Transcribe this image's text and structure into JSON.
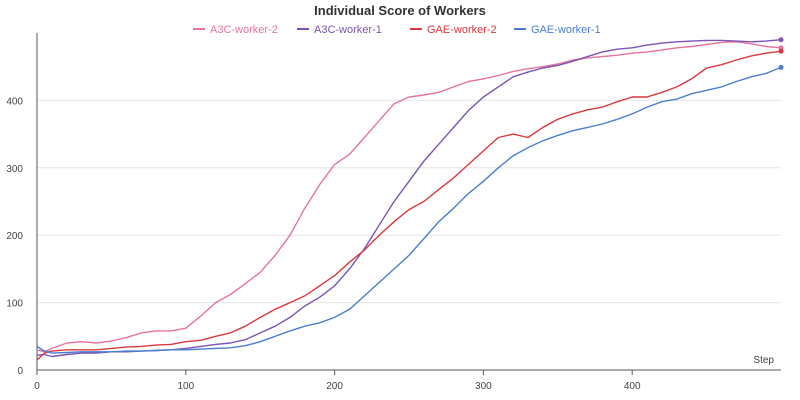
{
  "chart_data": {
    "type": "line",
    "title": "Individual Score of Workers",
    "xlabel": "Step",
    "ylabel": "",
    "xlim": [
      0,
      500
    ],
    "ylim": [
      0,
      500
    ],
    "x_ticks": [
      0,
      100,
      200,
      300,
      400
    ],
    "y_ticks": [
      0,
      100,
      200,
      300,
      400
    ],
    "grid": "horizontal",
    "legend_position": "top",
    "series": [
      {
        "name": "A3C-worker-2",
        "color": "#e8749c",
        "x": [
          0,
          5,
          10,
          20,
          30,
          40,
          50,
          60,
          70,
          80,
          90,
          100,
          110,
          120,
          130,
          140,
          150,
          160,
          170,
          180,
          190,
          200,
          210,
          220,
          230,
          240,
          250,
          260,
          270,
          280,
          290,
          300,
          310,
          320,
          330,
          340,
          350,
          360,
          370,
          380,
          390,
          400,
          410,
          420,
          430,
          440,
          450,
          460,
          470,
          480,
          490,
          500
        ],
        "values": [
          30,
          27,
          32,
          40,
          42,
          40,
          43,
          48,
          55,
          58,
          58,
          62,
          80,
          100,
          112,
          128,
          145,
          170,
          200,
          240,
          275,
          305,
          320,
          345,
          370,
          395,
          405,
          408,
          412,
          420,
          428,
          432,
          437,
          443,
          447,
          450,
          454,
          460,
          463,
          465,
          467,
          470,
          472,
          475,
          478,
          480,
          483,
          486,
          487,
          484,
          480,
          478
        ]
      },
      {
        "name": "A3C-worker-1",
        "color": "#7b54b5",
        "x": [
          0,
          5,
          10,
          20,
          30,
          40,
          50,
          60,
          70,
          80,
          90,
          100,
          110,
          120,
          130,
          140,
          150,
          160,
          170,
          180,
          190,
          200,
          210,
          220,
          230,
          240,
          250,
          260,
          270,
          280,
          290,
          300,
          310,
          320,
          330,
          340,
          350,
          360,
          370,
          380,
          390,
          400,
          410,
          420,
          430,
          440,
          450,
          460,
          470,
          480,
          490,
          500
        ],
        "values": [
          22,
          23,
          20,
          23,
          25,
          25,
          27,
          27,
          28,
          29,
          30,
          32,
          35,
          38,
          40,
          45,
          55,
          65,
          78,
          95,
          108,
          125,
          150,
          180,
          215,
          250,
          280,
          310,
          335,
          360,
          385,
          405,
          420,
          435,
          442,
          448,
          452,
          458,
          465,
          472,
          476,
          478,
          482,
          485,
          487,
          488,
          489,
          489,
          488,
          487,
          488,
          490
        ]
      },
      {
        "name": "GAE-worker-2",
        "color": "#d9393b",
        "x": [
          0,
          5,
          10,
          20,
          30,
          40,
          50,
          60,
          70,
          80,
          90,
          100,
          110,
          120,
          130,
          140,
          150,
          160,
          170,
          180,
          190,
          200,
          210,
          220,
          230,
          240,
          250,
          260,
          270,
          280,
          290,
          300,
          310,
          320,
          330,
          340,
          350,
          360,
          370,
          380,
          390,
          400,
          410,
          420,
          430,
          440,
          450,
          460,
          470,
          480,
          490,
          500
        ],
        "values": [
          15,
          25,
          28,
          30,
          30,
          30,
          32,
          34,
          35,
          37,
          38,
          42,
          44,
          50,
          55,
          65,
          78,
          90,
          100,
          110,
          125,
          140,
          160,
          178,
          200,
          220,
          238,
          250,
          268,
          285,
          305,
          325,
          345,
          350,
          345,
          360,
          372,
          380,
          386,
          390,
          398,
          405,
          405,
          412,
          420,
          432,
          448,
          453,
          460,
          466,
          470,
          473
        ]
      },
      {
        "name": "GAE-worker-1",
        "color": "#4a7fd0",
        "x": [
          0,
          5,
          10,
          20,
          30,
          40,
          50,
          60,
          70,
          80,
          90,
          100,
          110,
          120,
          130,
          140,
          150,
          160,
          170,
          180,
          190,
          200,
          210,
          220,
          230,
          240,
          250,
          260,
          270,
          280,
          290,
          300,
          310,
          320,
          330,
          340,
          350,
          360,
          370,
          380,
          390,
          400,
          410,
          420,
          430,
          440,
          450,
          460,
          470,
          480,
          490,
          500
        ],
        "values": [
          35,
          28,
          25,
          26,
          27,
          27,
          27,
          28,
          28,
          29,
          30,
          30,
          31,
          32,
          33,
          36,
          42,
          50,
          58,
          65,
          70,
          78,
          90,
          110,
          130,
          150,
          170,
          195,
          220,
          240,
          262,
          280,
          300,
          318,
          330,
          340,
          348,
          355,
          360,
          365,
          372,
          380,
          390,
          398,
          402,
          410,
          415,
          420,
          428,
          435,
          440,
          449
        ]
      }
    ]
  }
}
